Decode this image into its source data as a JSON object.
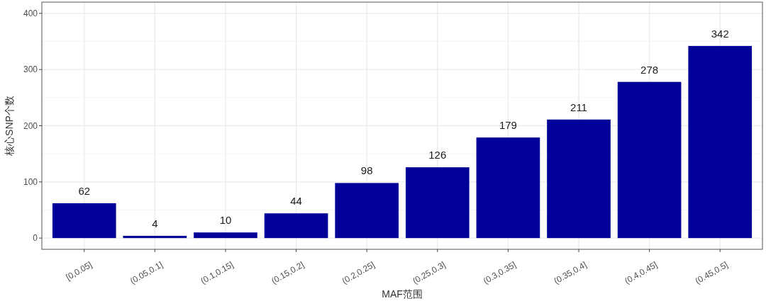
{
  "chart_data": {
    "type": "bar",
    "xlabel": "MAF范围",
    "ylabel": "核心SNP个数",
    "categories": [
      "[0,0.05]",
      "(0.05,0.1]",
      "(0.1,0.15]",
      "(0.15,0.2]",
      "(0.2,0.25]",
      "(0.25,0.3]",
      "(0.3,0.35]",
      "(0.35,0.4]",
      "(0.4,0.45]",
      "(0.45,0.5]"
    ],
    "values": [
      62,
      4,
      10,
      44,
      98,
      126,
      179,
      211,
      278,
      342
    ],
    "color": "#000099",
    "ylim": [
      -20,
      420
    ],
    "yticks": [
      0,
      100,
      200,
      300,
      400
    ],
    "grid": true,
    "data_labels": true
  }
}
